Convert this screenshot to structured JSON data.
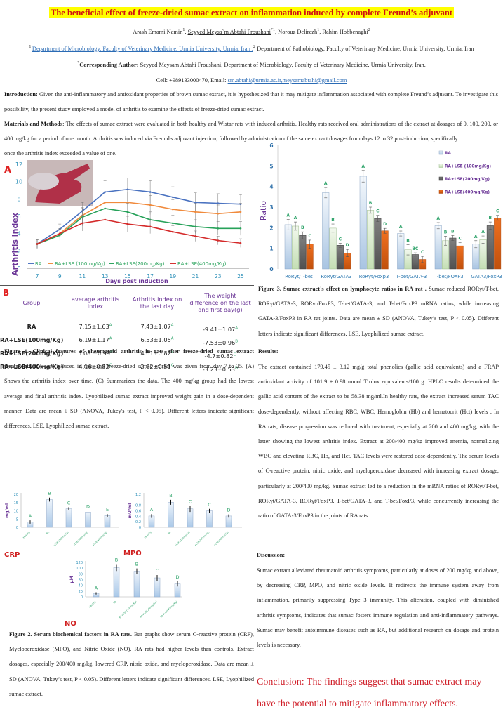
{
  "header": {
    "title": "The beneficial effect of freeze-dried sumac extract on inflammation induced by complete Freund’s adjuvant",
    "authors": {
      "a1": "Arash Emami Namin",
      "a1_sup": "1",
      "a2": "Seyyed Meysa`m Abtahi Froushani",
      "a2_sup": "*1",
      "sep": ",",
      "a3": " Norouz Delirezh",
      "a3_sup": "1",
      "a4": ", Rahim Hobbenaghi",
      "a4_sup": "2",
      "comma": ", "
    },
    "affiliations": {
      "sup1": "1 ",
      "aff1": "Department of Microbiology, Faculty of Veterinary Medicine, Urmia University, Urmia, Iran ,",
      "sup2": "2",
      "aff2": " Department of Pathobiology, Faculty of Veterinary Medicine, Urmia University, Urmia, Iran"
    },
    "corresponding": {
      "star": "*",
      "label": "Corresponding Author:",
      "text": " Seyyed Meysam Abtahi Froushani, Department of Microbiology, Faculty of Veterinary Medicine, Urmia University, Iran."
    },
    "contact": {
      "cell": "Cell: +989133000470, Email: ",
      "email": "sm.abtahi@urmia.ac.ir,meysamabtahi@gmail.com"
    }
  },
  "intro": {
    "label": "Introduction:",
    "text": " Given the anti-inflammatory and antioxidant properties of brown sumac extract, it is hypothesized that it may mitigate inflammation associated with complete Freund’s adjuvant. To investigate this possibility, the present study employed a model of arthritis to examine the effects of freeze-dried sumac extract."
  },
  "methods": {
    "label": "Materials and Methods",
    "text": ": The effects of sumac extract were evaluated in both healthy and Wistar rats with induced arthritis. Healthy rats received oral administrations of the extract at dosages of 0, 100, 200, or 400 mg/kg for a period of one month. Arthritis was induced via Freund's adjuvant injection, followed by administration of the same extract dosages from days 12 to 32 post-induction, specifically",
    "text_end": "once the arthritis index exceeded a value of one."
  },
  "fig1": {
    "panel_a": "A",
    "panel_b": "B",
    "caption_bold": "Figure 1. Clinical features of rheumatoid arthritis in rats after freeze-dried sumac extract treatments.",
    "caption_text": " RA was induced in rats, and freeze-dried sumac extract was given from day 7 to 25. (A) Shows the arthritis index over time. (C) Summarizes the data. The 400 mg/kg group had the lowest average and final arthritis index. Lyophilized sumac extract improved weight gain in a dose-dependent manner. Data are mean ± SD (ANOVA, Tukey's test, P < 0.05). Different letters indicate significant differences. LSE, Lyophilized sumac extract.",
    "table": {
      "headers": [
        "Group",
        "average arthritis index",
        "Arthritis index on the last day",
        "The weight difference on the last and first day(g)"
      ],
      "rows": [
        {
          "group": "RA",
          "avg": "7.15±1.63",
          "avg_l": "A",
          "last": "7.43±1.07",
          "last_l": "A",
          "wt": "-9.41±1.07",
          "wt_l": "A"
        },
        {
          "group": "RA+LSE(100mg/Kg)",
          "avg": "6.19±1.17",
          "avg_l": "A",
          "last": "6.53±1.05",
          "last_l": "A",
          "wt": "-7.53±0.96",
          "wt_l": "B"
        },
        {
          "group": "RA+LSE(200mg/Kg)",
          "avg": "5.08 ±0.99",
          "avg_l": "B",
          "last": "4.61±0.82",
          "last_l": "B",
          "wt": "-4.7±0.82",
          "wt_l": "C"
        },
        {
          "group": "RA+LSE(400mg/Kg)",
          "avg": "4.16±0.82",
          "avg_l": "C",
          "last": "2.82±0.51",
          "last_l": "C",
          "wt": "-3.23±0.53",
          "wt_l": "D"
        }
      ]
    }
  },
  "fig2": {
    "crp_label": "CRP",
    "mpo_label": "MPO",
    "no_label": "NO",
    "caption_bold": "Figure 2. Serum biochemical factors in RA rats.",
    "caption_text": " Bar graphs show serum C-reactive protein (CRP), Myeloperoxidase (MPO), and Nitric Oxide (NO). RA rats had higher levels than controls. Extract dosages, especially 200/400 mg/kg, lowered CRP, nitric oxide, and myeloperoxidase. Data are mean ± SD (ANOVA, Tukey’s test, P < 0.05). Different letters indicate significant differences. LSE, Lyophilized sumac extract."
  },
  "fig3": {
    "caption_bold": "Figure 3. Sumac extract's effect on lymphocyte ratios in RA rat .",
    "caption_text": " Sumac reduced RORγt/T-bet, RORγt/GATA-3, RORγt/FoxP3, T-bet/GATA-3, and T-bet/FoxP3 mRNA ratios, while increasing GATA-3/FoxP3 in RA rat joints. Data are mean ± SD (ANOVA, Tukey’s test, P < 0.05). Different letters indicate significant differences. LSE, Lyophilized sumac extract."
  },
  "results": {
    "heading": "Results:",
    "text": "The extract contained 179.45 ± 3.12 mg/g total phenolics (gallic acid equivalents) and a FRAP antioxidant activity of 101.9 ± 0.98 mmol Trolox equivalents/100 g. HPLC results determined the gallic acid content of the extract to be 58.38 mg/ml.In healthy rats, the extract increased serum TAC dose-dependently, without affecting RBC, WBC, Hemoglobin (Hb) and hematocrit (Hct) levels . In RA rats, disease progression was reduced with treatment, especially at 200 and 400 mg/kg, with the latter showing the lowest arthritis index. Extract at 200/400 mg/kg improved anemia, normalizing WBC and elevating RBC, Hb, and Hct. TAC levels were restored dose-dependently. The serum levels of C-reactive protein, nitric oxide, and myeloperoxidase decreased with increasing extract dosage, particularly at 200/400 mg/kg. Sumac extract led to a reduction in the mRNA ratios of RORγt/T-bet, RORγt/GATA-3, RORγt/FoxP3, T-bet/GATA-3, and T-bet/FoxP3, while concurrently increasing the ratio of GATA-3/FoxP3 in the joints of RA rats."
  },
  "discussion": {
    "heading": "Discussion:",
    "text": "Sumac extract alleviated rheumatoid arthritis symptoms, particularly at doses of 200 mg/kg and above, by decreasing CRP, MPO, and nitric oxide levels. It redirects the immune system away from inflammation, primarily suppressing Type 3 immunity. This alteration, coupled with diminished arthritis symptoms, indicates that sumac fosters immune regulation and anti-inflammatory pathways. Sumac may benefit autoimmune diseases such as RA, but additional research on dosage and protein levels is necessary."
  },
  "conclusion": {
    "text": "Conclusion: The findings suggest that sumac extract may have the potential to mitigate inflammatory effects."
  },
  "colors": {
    "ra": "#4a72c0",
    "lse100": "#f08a3c",
    "lse200": "#27a25a",
    "lse400": "#d42a2a",
    "label_green": "#2ea36a",
    "axis_blue": "#2b8fb8",
    "axis_purple": "#6a3596"
  },
  "chart_data": [
    {
      "type": "line",
      "title": "",
      "xlabel": "Days post induction",
      "ylabel": "Arthritis index",
      "x": [
        7,
        9,
        11,
        13,
        15,
        17,
        19,
        21,
        23,
        25
      ],
      "ylim": [
        0,
        12
      ],
      "yticks": [
        0,
        2,
        4,
        6,
        8,
        10,
        12
      ],
      "legend": "bottom",
      "series": [
        {
          "name": "RA",
          "values": [
            2.8,
            4.5,
            6.6,
            8.8,
            9.1,
            8.8,
            8.2,
            7.6,
            7.5,
            7.4
          ],
          "err": [
            0.5,
            0.6,
            1.0,
            1.3,
            1.3,
            1.3,
            1.2,
            1.1,
            1.1,
            1.1
          ]
        },
        {
          "name": "RA+LSE (100mg/Kg)",
          "values": [
            2.8,
            4.0,
            6.1,
            7.6,
            7.6,
            7.3,
            6.8,
            6.5,
            6.3,
            6.5
          ],
          "err": [
            0.5,
            0.5,
            0.9,
            1.2,
            1.2,
            1.1,
            1.1,
            1.0,
            1.0,
            1.0
          ]
        },
        {
          "name": "RA+LSE(200mg/Kg)",
          "values": [
            2.8,
            3.8,
            5.9,
            6.9,
            6.5,
            5.6,
            5.2,
            4.8,
            4.6,
            4.6
          ],
          "err": [
            0.5,
            0.6,
            1.0,
            1.1,
            1.0,
            0.9,
            0.9,
            0.8,
            0.8,
            0.8
          ]
        },
        {
          "name": "RA+LSE(400mg/Kg)",
          "values": [
            2.8,
            4.0,
            5.2,
            5.6,
            5.1,
            4.8,
            4.2,
            3.7,
            3.2,
            2.9
          ],
          "err": [
            0.5,
            0.6,
            0.9,
            1.0,
            0.9,
            0.8,
            0.7,
            0.6,
            0.5,
            0.5
          ]
        }
      ]
    },
    {
      "type": "bar",
      "title": "CRP",
      "ylabel": "mg/ml",
      "ylim": [
        0,
        20
      ],
      "yticks": [
        0,
        5,
        10,
        15,
        20
      ],
      "categories": [
        "Healthy",
        "RA",
        "RA+LSE (100mg/Kg)",
        "RA+LSE(200mg/Kg)",
        "RA+LSE(400mg/Kg)"
      ],
      "values": [
        3.2,
        16.8,
        11.2,
        9.2,
        7.1
      ],
      "err": [
        1.0,
        1.2,
        1.0,
        0.9,
        0.9
      ],
      "letters": [
        "A",
        "B",
        "C",
        "D",
        "E"
      ]
    },
    {
      "type": "bar",
      "title": "MPO",
      "ylabel": "mU/ml",
      "ylim": [
        0,
        1.2
      ],
      "yticks": [
        0,
        0.2,
        0.4,
        0.6,
        0.8,
        1,
        1.2
      ],
      "yticklabels": [
        "0",
        "0.2",
        "0.4",
        "0.6",
        "0.8",
        "1",
        "1.2"
      ],
      "categories": [
        "Healthy",
        "RA",
        "RA+LSE (100mg/Kg)",
        "RA+LSE(200mg/Kg)",
        "RA+LSE(400mg/Kg)"
      ],
      "values": [
        0.41,
        0.91,
        0.67,
        0.6,
        0.41
      ],
      "err": [
        0.07,
        0.09,
        0.11,
        0.07,
        0.06
      ],
      "letters": [
        "A",
        "B",
        "C",
        "C",
        "D"
      ]
    },
    {
      "type": "bar",
      "title": "NO",
      "ylabel": "µM",
      "ylim": [
        0,
        120
      ],
      "yticks": [
        0,
        20,
        40,
        60,
        80,
        100,
        120
      ],
      "categories": [
        "Healthy",
        "RA",
        "RA+LSE (100mg/Kg)",
        "RA+LSE(200mg/Kg)",
        "RA+LSE(400mg/Kg)"
      ],
      "values": [
        12,
        102,
        89,
        66,
        45
      ],
      "err": [
        4,
        12,
        10,
        10,
        9
      ],
      "letters": [
        "A",
        "B",
        "B",
        "C",
        "D"
      ]
    },
    {
      "type": "bar",
      "title": "",
      "ylabel": "Ratio",
      "ylim": [
        0,
        6
      ],
      "yticks": [
        0,
        1,
        2,
        3,
        4,
        5,
        6
      ],
      "legend": "top-right",
      "categories": [
        "RoRγt/T-bet",
        "RoRγt/GATA3",
        "RoRγt/Foxp3",
        "T-bet/GATA-3",
        "T-bet/FOXP3",
        "GATA3/FoxP3"
      ],
      "series": [
        {
          "name": "RA",
          "values": [
            2.15,
            3.7,
            4.5,
            1.72,
            2.1,
            1.2
          ],
          "err": [
            0.25,
            0.25,
            0.28,
            0.12,
            0.15,
            0.17
          ],
          "letters": [
            "A",
            "A",
            "A",
            "A",
            "A",
            "A"
          ]
        },
        {
          "name": "RA+LSE (100mg/Kg)",
          "values": [
            2.08,
            1.98,
            2.85,
            0.93,
            1.37,
            1.42
          ],
          "err": [
            0.2,
            0.2,
            0.15,
            0.25,
            0.22,
            0.18
          ],
          "letters": [
            "A",
            "B",
            "B",
            "B",
            "B",
            "A"
          ]
        },
        {
          "name": "RA+LSE(200mg/Kg)",
          "values": [
            1.63,
            1.15,
            2.45,
            0.7,
            1.5,
            2.1
          ],
          "err": [
            0.17,
            0.1,
            0.15,
            0.08,
            0.12,
            0.18
          ],
          "letters": [
            "B",
            "C",
            "C",
            "BC",
            "B",
            "B"
          ]
        },
        {
          "name": "RA+LSE(400mg/Kg)",
          "values": [
            1.2,
            0.77,
            1.85,
            0.46,
            1.12,
            2.48
          ],
          "err": [
            0.2,
            0.18,
            0.12,
            0.15,
            0.15,
            0.12
          ],
          "letters": [
            "C",
            "D",
            "D",
            "C",
            "C",
            "C"
          ]
        }
      ]
    }
  ]
}
